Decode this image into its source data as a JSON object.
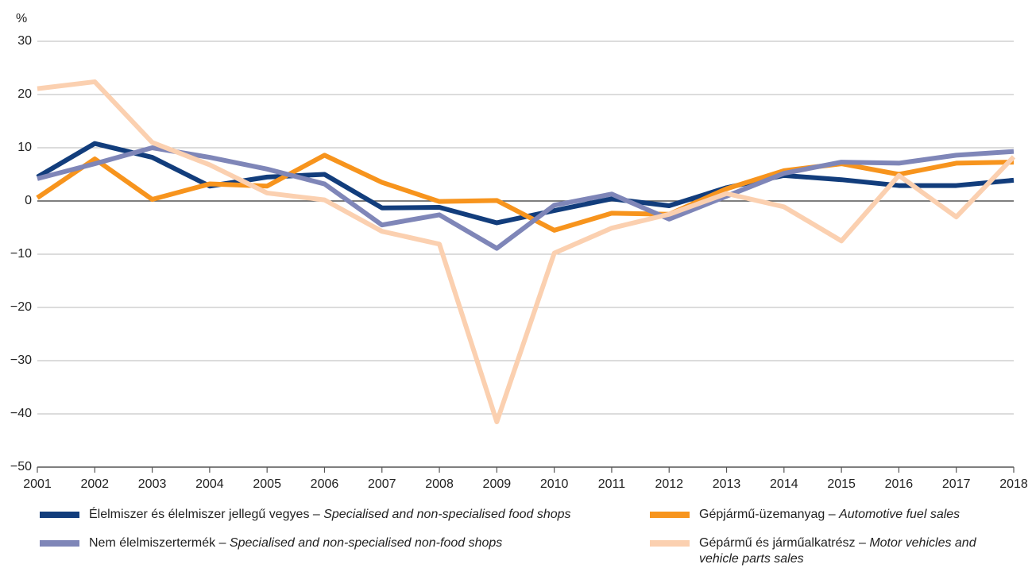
{
  "chart_data": {
    "type": "line",
    "ylabel": "%",
    "x": [
      2001,
      2002,
      2003,
      2004,
      2005,
      2006,
      2007,
      2008,
      2009,
      2010,
      2011,
      2012,
      2013,
      2014,
      2015,
      2016,
      2017,
      2018
    ],
    "xlim": [
      2001,
      2018
    ],
    "xticks": [
      2001,
      2002,
      2003,
      2004,
      2005,
      2006,
      2007,
      2008,
      2009,
      2010,
      2011,
      2012,
      2013,
      2014,
      2015,
      2016,
      2017,
      2018
    ],
    "ylim": [
      -50,
      30
    ],
    "yticks": [
      {
        "value": -50,
        "label": "−50"
      },
      {
        "value": -40,
        "label": "−40"
      },
      {
        "value": -30,
        "label": "−30"
      },
      {
        "value": -20,
        "label": "−20"
      },
      {
        "value": -10,
        "label": "−10"
      },
      0,
      10,
      20,
      30
    ],
    "grid": true,
    "legend": "bottom",
    "series": [
      {
        "name": "Élelmiszer és élelmiszer jellegű vegyes – Specialised and non-specialised food shops",
        "color": "#123d7c",
        "values": [
          4.5,
          10.8,
          8.2,
          2.8,
          4.5,
          5.0,
          -1.3,
          -1.2,
          -4.1,
          -1.8,
          0.4,
          -0.9,
          2.5,
          4.8,
          4.0,
          2.9,
          2.9,
          3.9
        ]
      },
      {
        "name": "Gépjármű-üzemanyag – Automotive fuel sales",
        "color": "#f7941d",
        "values": [
          0.6,
          7.9,
          0.3,
          3.2,
          2.8,
          8.6,
          3.5,
          -0.1,
          0.1,
          -5.5,
          -2.3,
          -2.5,
          2.3,
          5.7,
          7.0,
          5.0,
          7.1,
          7.3
        ]
      },
      {
        "name": "Nem élelmiszertermék – Specialised and non-specialised non-food shops",
        "color": "#7f86b8",
        "values": [
          4.2,
          7.0,
          10.0,
          8.2,
          6.0,
          3.2,
          -4.5,
          -2.6,
          -8.9,
          -0.8,
          1.3,
          -3.4,
          0.9,
          5.2,
          7.3,
          7.1,
          8.6,
          9.3
        ]
      },
      {
        "name": "Gépármű és járműalkatrész – Motor vehicles and vehicle parts sales",
        "color": "#fbd0b0",
        "values": [
          21.1,
          22.4,
          11.0,
          6.8,
          1.5,
          0.2,
          -5.7,
          -8.1,
          -41.5,
          -9.8,
          -5.1,
          -2.5,
          1.4,
          -1.1,
          -7.5,
          4.8,
          -3.0,
          8.3
        ]
      }
    ]
  }
}
